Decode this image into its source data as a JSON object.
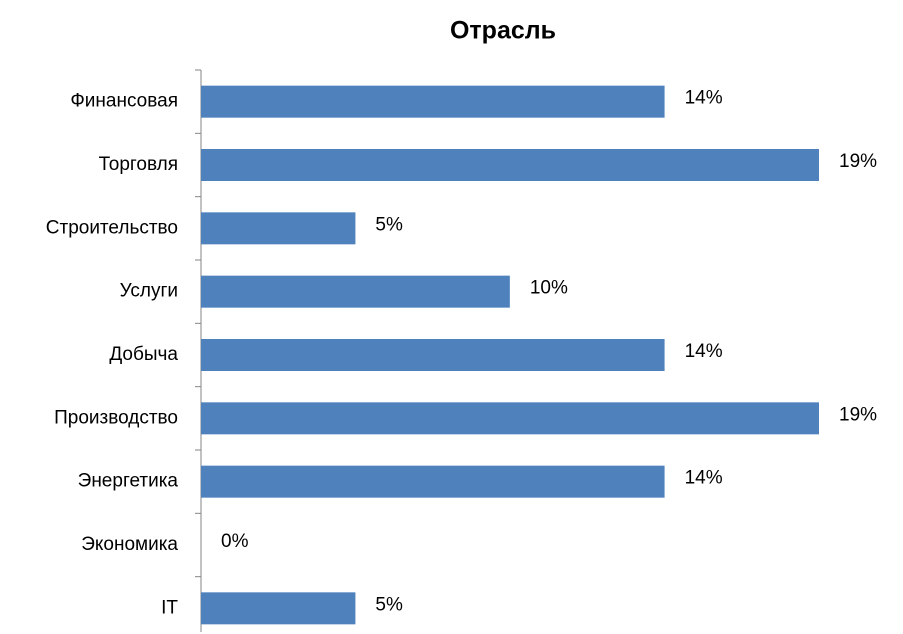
{
  "chart_data": {
    "type": "bar",
    "orientation": "horizontal",
    "title": "Отрасль",
    "categories": [
      "Финансовая",
      "Торговля",
      "Строительство",
      "Услуги",
      "Добыча",
      "Производство",
      "Энергетика",
      "Экономика",
      "IT"
    ],
    "values": [
      14.29,
      19.05,
      4.76,
      9.52,
      14.29,
      19.05,
      14.29,
      0,
      4.76
    ],
    "value_labels": [
      "14%",
      "19%",
      "5%",
      "10%",
      "14%",
      "19%",
      "14%",
      "0%",
      "5%"
    ],
    "color": "#4f81bd"
  }
}
